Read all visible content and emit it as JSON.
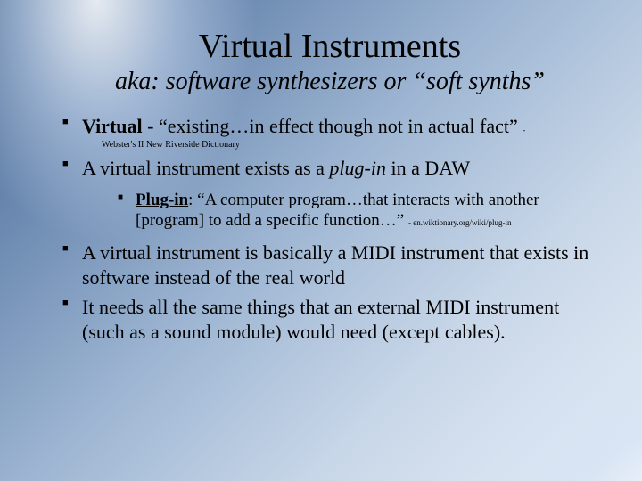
{
  "title": "Virtual Instruments",
  "subtitle": "aka: software synthesizers or “soft synths”",
  "bullets": {
    "b1_pre": "Virtual",
    "b1_post": " - “existing…in effect though not in actual fact” ",
    "b1_dash": "- ",
    "b1_cite": "Webster's II New Riverside Dictionary",
    "b2_a": "A virtual instrument exists as a ",
    "b2_em": "plug-in",
    "b2_b": " in a DAW",
    "b2n_u": "Plug-in",
    "b2n_t": ": “A computer program…that interacts with another [program] to add a specific function…” ",
    "b2n_c": "- en.wiktionary.org/wiki/plug-in",
    "b3": "A virtual instrument is basically a MIDI instrument that exists in software instead of the real world",
    "b4": "It needs all the same things that an external MIDI instrument (such as a sound module) would need (except cables)."
  },
  "style": {
    "title_fontsize": 38,
    "subtitle_fontsize": 28,
    "bullet_fontsize": 22,
    "nested_fontsize": 19,
    "citation_fontsize": 10,
    "text_color": "#000000",
    "bg_gradient_stops": [
      "#4a6a95",
      "#6a88b0",
      "#9db5d2",
      "#c7d6e8",
      "#e6edf5"
    ]
  }
}
